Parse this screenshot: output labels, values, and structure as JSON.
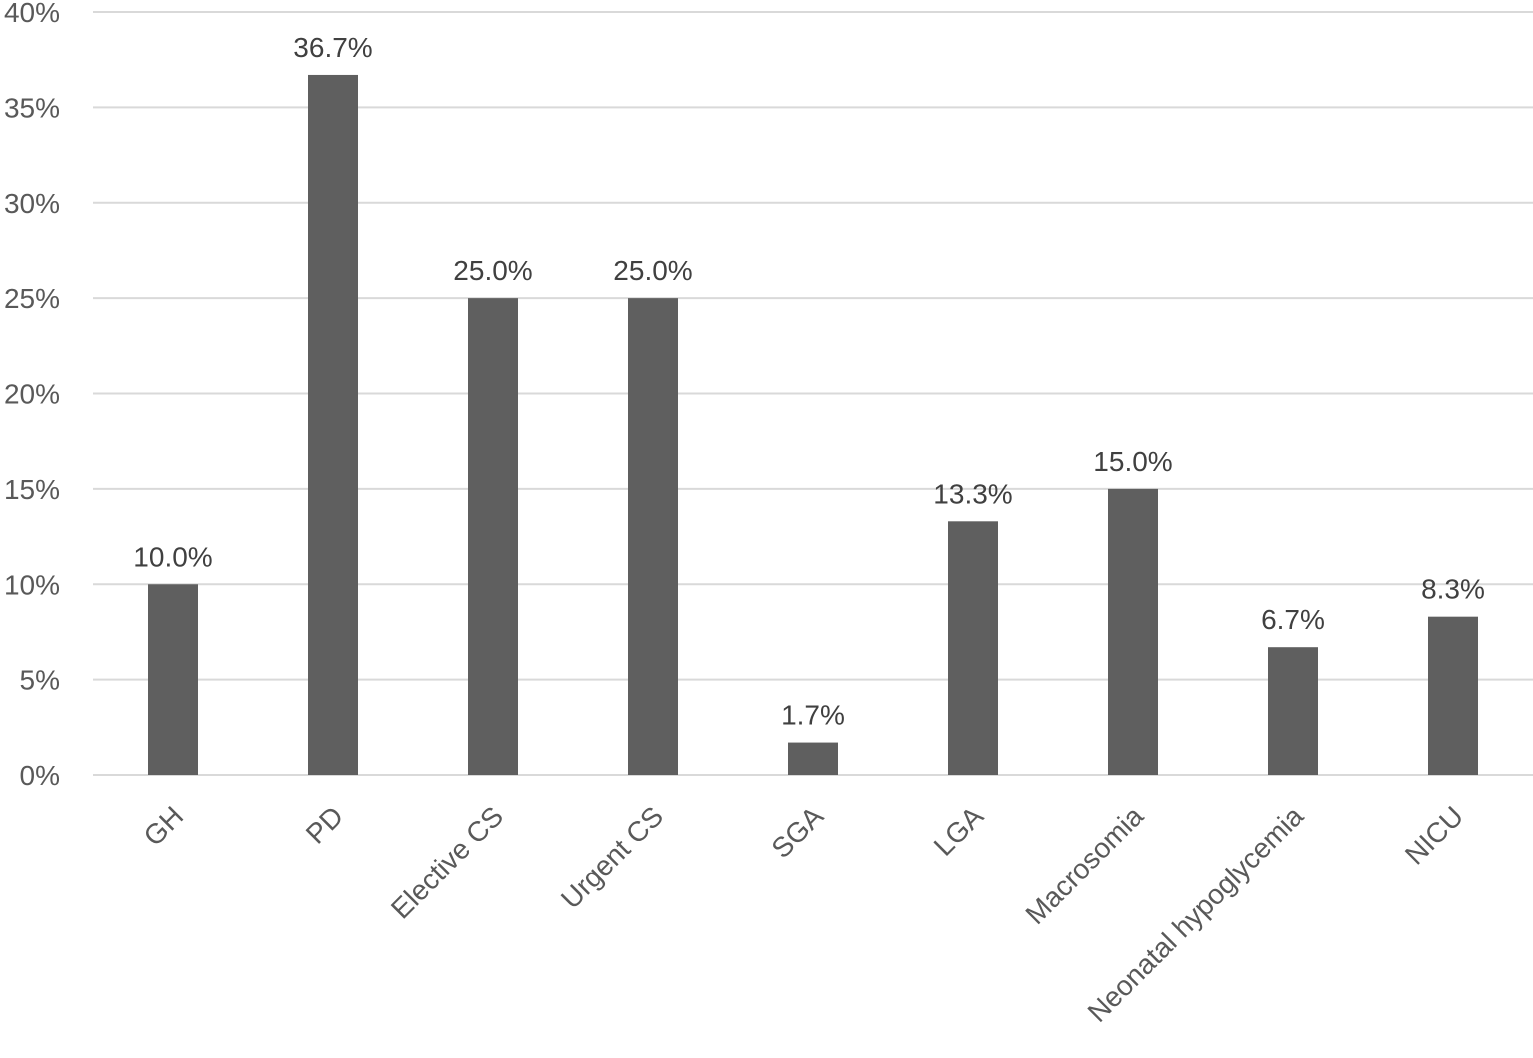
{
  "chart_data": {
    "type": "bar",
    "categories": [
      "GH",
      "PD",
      "Elective CS",
      "Urgent CS",
      "SGA",
      "LGA",
      "Macrosomia",
      "Neonatal hypoglycemia",
      "NICU"
    ],
    "series": [
      {
        "values": [
          10.0,
          36.7,
          25.0,
          25.0,
          1.7,
          13.3,
          15.0,
          6.7,
          8.3
        ],
        "data_labels": [
          "10.0%",
          "36.7%",
          "25.0%",
          "25.0%",
          "1.7%",
          "13.3%",
          "15.0%",
          "6.7%",
          "8.3%"
        ],
        "color": "#5f5f5f"
      }
    ],
    "ylim": [
      0,
      40
    ],
    "yticks": [
      0,
      5,
      10,
      15,
      20,
      25,
      30,
      35,
      40
    ],
    "ytick_labels": [
      "0%",
      "5%",
      "10%",
      "15%",
      "20%",
      "25%",
      "30%",
      "35%",
      "40%"
    ],
    "grid": true,
    "legend": "none",
    "title": "",
    "xlabel": "",
    "ylabel": ""
  },
  "colors": {
    "bar": "#5f5f5f",
    "grid": "#d9d9d9",
    "tick_text": "#595959",
    "label_text": "#404040"
  }
}
